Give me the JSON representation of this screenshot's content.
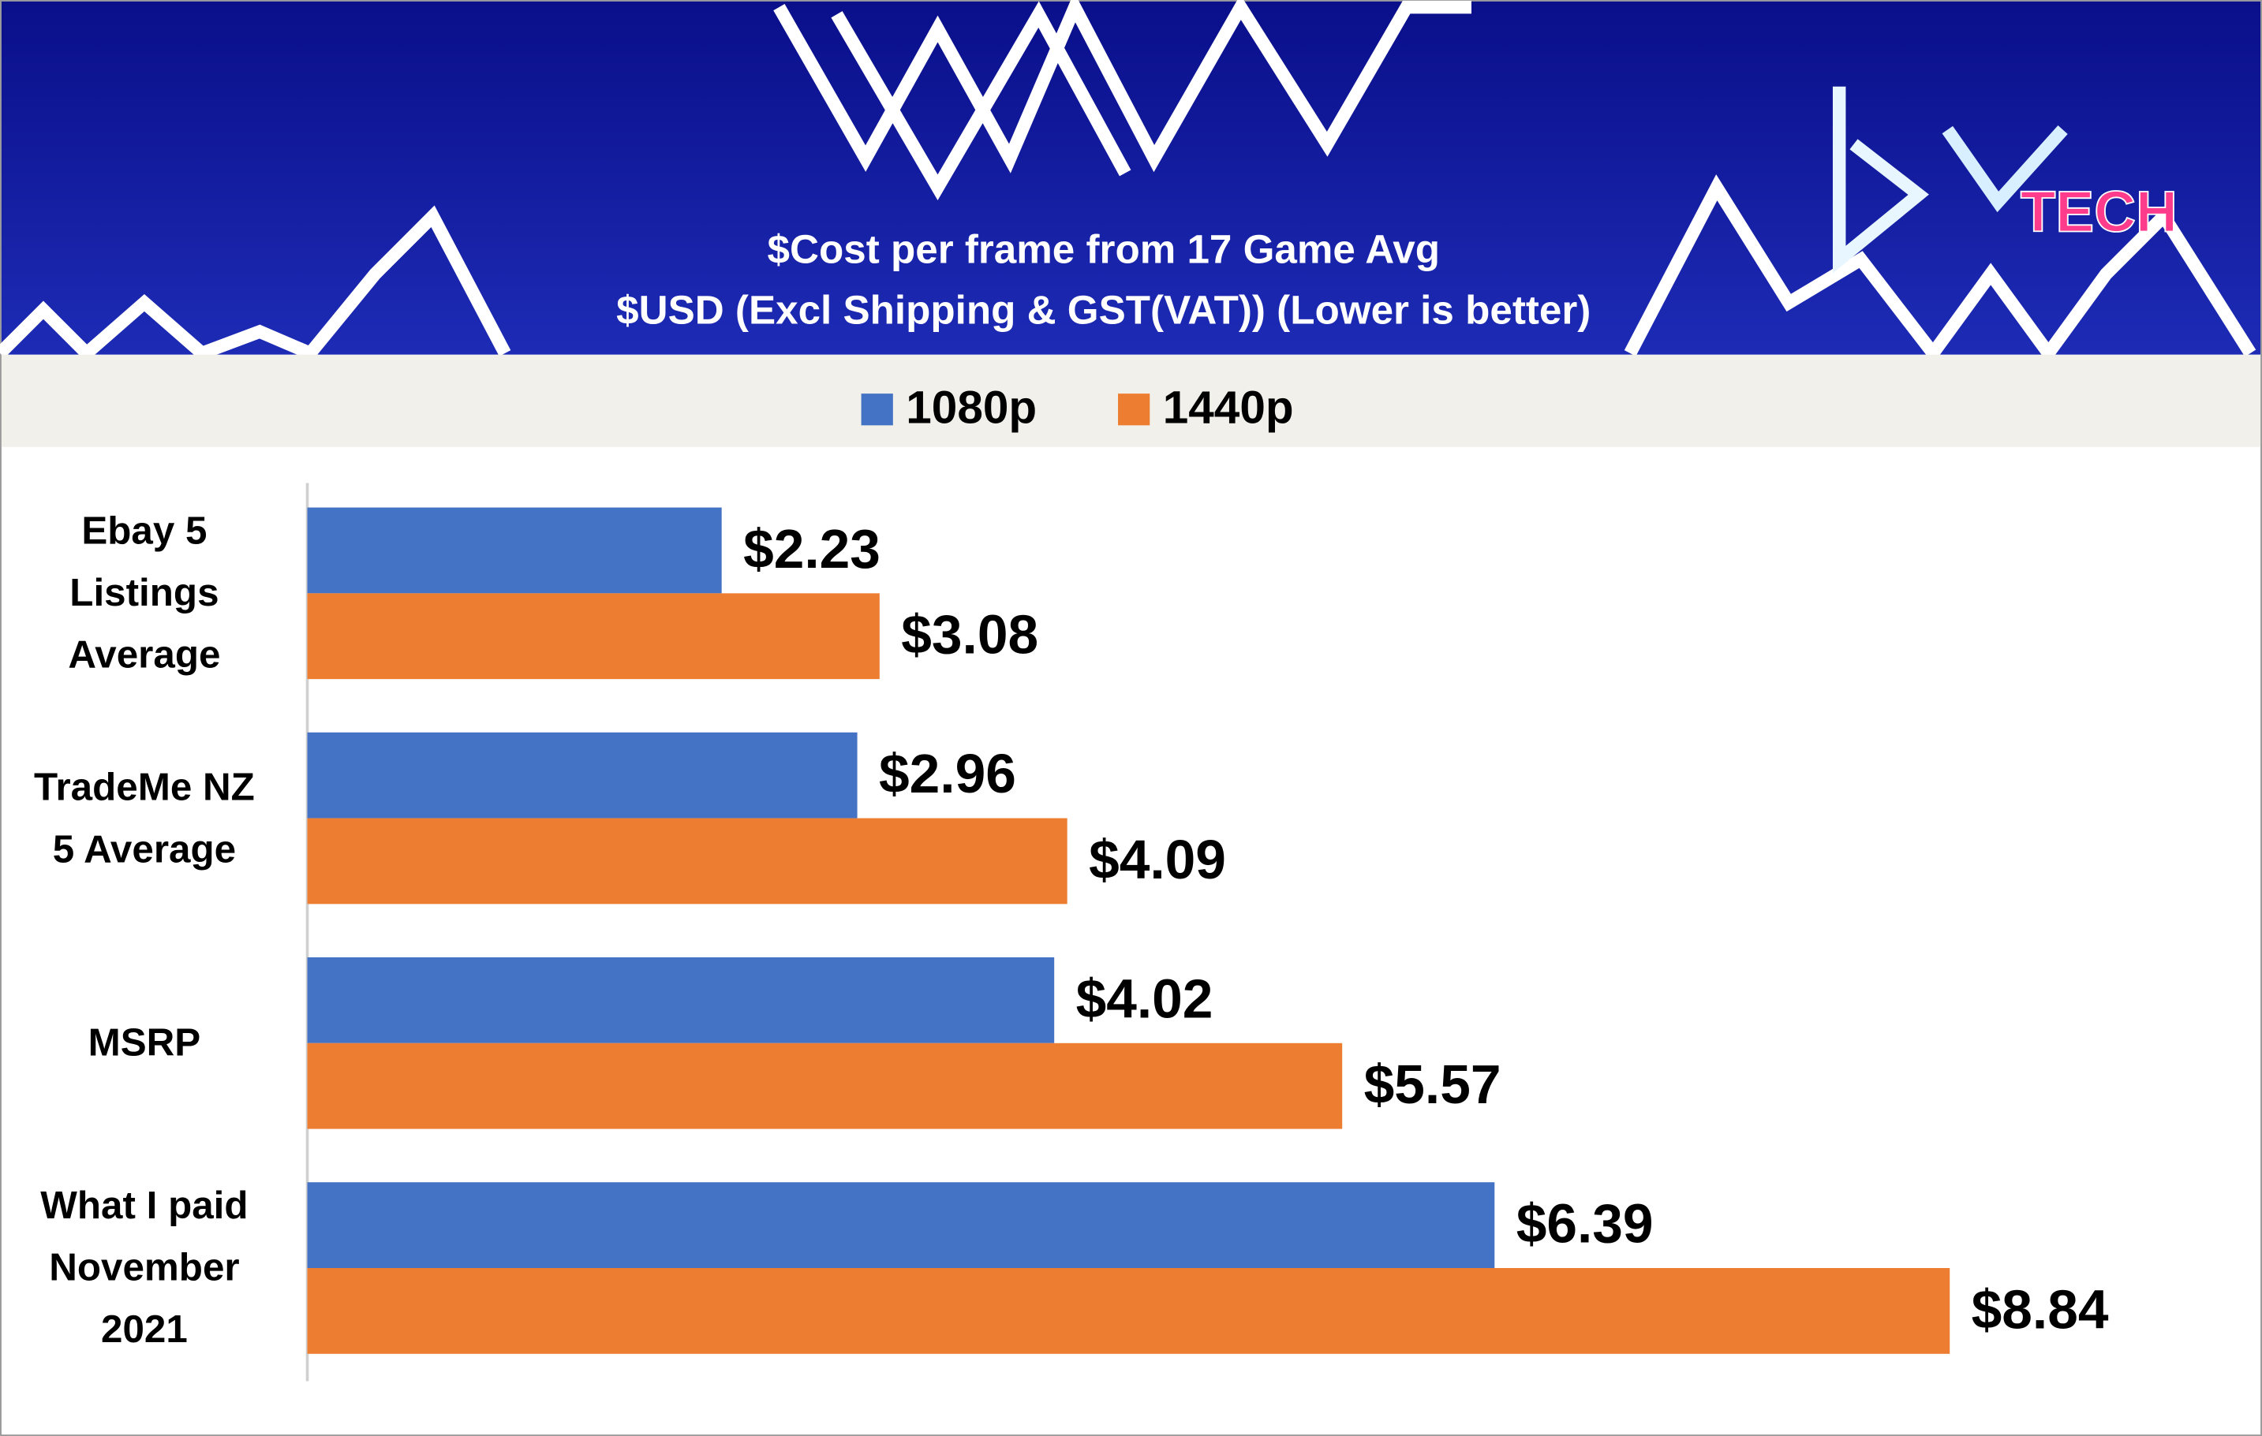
{
  "chart_data": {
    "type": "bar",
    "orientation": "horizontal",
    "title": "$Cost per frame from 17 Game Avg",
    "subtitle": "$USD (Excl Shipping & GST(VAT)) (Lower is better)",
    "logo_text": "TECH",
    "categories": [
      "Ebay 5 Listings Average",
      "TradeMe NZ  5 Average",
      "MSRP",
      "What I paid November 2021"
    ],
    "series": [
      {
        "name": "1080p",
        "color": "#4472c4",
        "values": [
          2.23,
          2.96,
          4.02,
          6.39
        ],
        "value_labels": [
          "$2.23",
          "$2.96",
          "$4.02",
          "$6.39"
        ]
      },
      {
        "name": "1440p",
        "color": "#ed7d31",
        "values": [
          3.08,
          4.09,
          5.57,
          8.84
        ],
        "value_labels": [
          "$3.08",
          "$4.09",
          "$5.57",
          "$8.84"
        ]
      }
    ],
    "legend": "top"
  }
}
